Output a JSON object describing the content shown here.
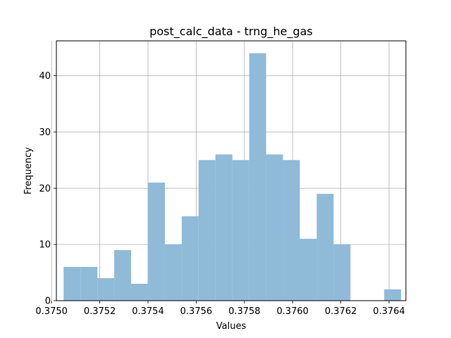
{
  "chart_data": {
    "type": "bar",
    "title": "post_calc_data - trng_he_gas",
    "xlabel": "Values",
    "ylabel": "Frequency",
    "bar_color": "#8fbad8",
    "grid": true,
    "xlim": [
      0.37502,
      0.37647
    ],
    "ylim": [
      0,
      46.2
    ],
    "xticks": [
      0.375,
      0.3752,
      0.3754,
      0.3756,
      0.3758,
      0.376,
      0.3762,
      0.3764
    ],
    "xtick_labels": [
      "0.3750",
      "0.3752",
      "0.3754",
      "0.3756",
      "0.3758",
      "0.3760",
      "0.3762",
      "0.3764"
    ],
    "yticks": [
      0,
      10,
      20,
      30,
      40
    ],
    "ytick_labels": [
      "0",
      "10",
      "20",
      "30",
      "40"
    ],
    "bin_edges": [
      0.37505,
      0.37512,
      0.37519,
      0.37526,
      0.37533,
      0.3754,
      0.37547,
      0.37554,
      0.37561,
      0.37568,
      0.37575,
      0.37582,
      0.37589,
      0.37596,
      0.37603,
      0.3761,
      0.37617,
      0.37624,
      0.37631,
      0.37638,
      0.37645
    ],
    "values": [
      6,
      6,
      4,
      9,
      3,
      21,
      10,
      15,
      25,
      26,
      25,
      44,
      26,
      25,
      11,
      19,
      10,
      0,
      0,
      2
    ]
  }
}
